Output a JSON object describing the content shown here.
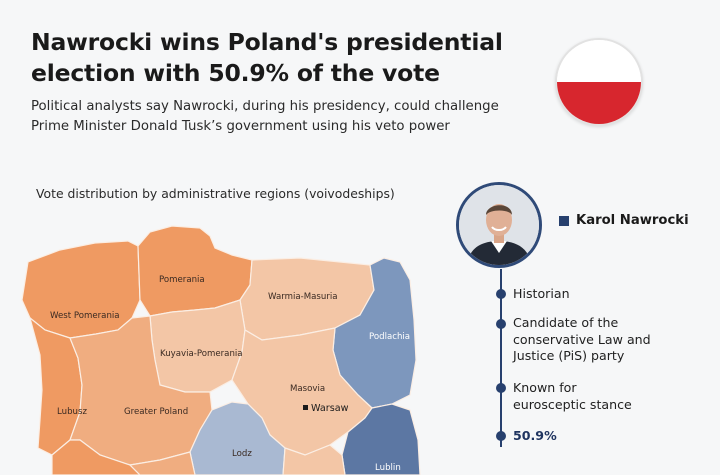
{
  "headline": {
    "line1": "Nawrocki wins Poland's presidential",
    "line2": "election with 50.9% of the vote"
  },
  "subheadline": {
    "line1": "Political analysts say Nawrocki, during his presidency, could challenge",
    "line2": "Prime Minister Donald Tusk’s government using his veto power"
  },
  "map": {
    "title": "Vote distribution by administrative regions (voivodeships)",
    "regions": {
      "west_pomerania": "West Pomerania",
      "pomerania": "Pomerania",
      "warmia_masuria": "Warmia-Masuria",
      "podlachia": "Podlachia",
      "kuyavia_pomerania": "Kuyavia-Pomerania",
      "lubusz": "Lubusz",
      "greater_poland": "Greater Poland",
      "masovia": "Masovia",
      "lodz": "Lodz",
      "lublin": "Lublin"
    },
    "capital": "Warsaw",
    "colors": {
      "orange_strong": "#ef9a62",
      "orange_medium": "#f0ad80",
      "orange_light": "#f3c6a6",
      "blue_light": "#a9b9d2",
      "blue_medium": "#7d97bd",
      "blue_dark": "#5c77a3"
    }
  },
  "candidate": {
    "name": "Karol Nawrocki",
    "legend_color": "#27406e",
    "facts": {
      "f1": "Historian",
      "f2_l1": "Candidate of the",
      "f2_l2": "conservative Law and",
      "f2_l3": "Justice (PiS) party",
      "f3_l1": "Known for",
      "f3_l2": "eurosceptic stance",
      "f4": "50.9%"
    }
  },
  "flag": {
    "top": "#ffffff",
    "bottom": "#d7262e"
  }
}
